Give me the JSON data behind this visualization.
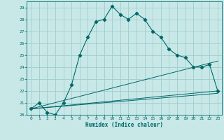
{
  "title": "",
  "xlabel": "Humidex (Indice chaleur)",
  "ylabel": "",
  "bg_color": "#c8e8e8",
  "grid_color": "#a0cccc",
  "line_color": "#006868",
  "xlim": [
    -0.5,
    23.5
  ],
  "ylim": [
    20,
    29.5
  ],
  "xticks": [
    0,
    1,
    2,
    3,
    4,
    5,
    6,
    7,
    8,
    9,
    10,
    11,
    12,
    13,
    14,
    15,
    16,
    17,
    18,
    19,
    20,
    21,
    22,
    23
  ],
  "yticks": [
    20,
    21,
    22,
    23,
    24,
    25,
    26,
    27,
    28,
    29
  ],
  "main_series": {
    "x": [
      0,
      1,
      2,
      3,
      4,
      5,
      6,
      7,
      8,
      9,
      10,
      11,
      12,
      13,
      14,
      15,
      16,
      17,
      18,
      19,
      20,
      21,
      22,
      23
    ],
    "y": [
      20.5,
      21.0,
      20.2,
      20.0,
      21.0,
      22.5,
      25.0,
      26.5,
      27.8,
      28.0,
      29.1,
      28.4,
      28.0,
      28.5,
      28.0,
      27.0,
      26.5,
      25.5,
      25.0,
      24.8,
      24.0,
      24.0,
      24.2,
      22.0
    ]
  },
  "linear_series": [
    {
      "x": [
        0,
        23
      ],
      "y": [
        20.5,
        24.5
      ]
    },
    {
      "x": [
        0,
        23
      ],
      "y": [
        20.5,
        22.0
      ]
    },
    {
      "x": [
        0,
        23
      ],
      "y": [
        20.5,
        21.8
      ]
    }
  ]
}
